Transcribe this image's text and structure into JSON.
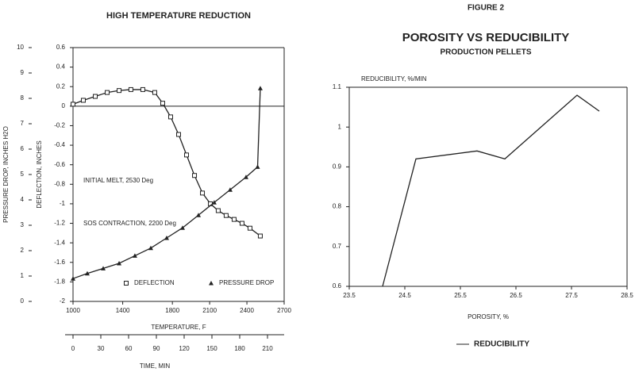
{
  "chart_data": [
    {
      "type": "line",
      "title": "HIGH TEMPERATURE REDUCTION",
      "xlabel": "TEMPERATURE, F",
      "x2label": "TIME, MIN",
      "ylabel": "DEFLECTION, INCHES",
      "y2label": "PRESSURE DROP, INCHES H2O",
      "xlim": [
        1000,
        2700
      ],
      "xticks": [
        1000,
        1400,
        1800,
        2100,
        2400,
        2700
      ],
      "x2lim": [
        0,
        228
      ],
      "x2ticks": [
        0,
        30,
        60,
        90,
        120,
        150,
        180,
        210
      ],
      "ylim": [
        -2,
        0.6
      ],
      "yticks": [
        -2,
        -1.8,
        -1.6,
        -1.4,
        -1.2,
        -1,
        -0.8,
        -0.6,
        -0.4,
        -0.2,
        0,
        0.2,
        0.4,
        0.6
      ],
      "y2lim": [
        0,
        10
      ],
      "y2ticks": [
        0,
        1,
        2,
        3,
        4,
        5,
        6,
        7,
        8,
        9,
        10
      ],
      "annotations": [
        "INITIAL MELT, 2530 Deg",
        "SOS CONTRACTION, 2200 Deg"
      ],
      "legend": "bottom",
      "series": [
        {
          "name": "DEFLECTION",
          "color": "#222222",
          "marker": "square",
          "x": [
            1000,
            1083,
            1179,
            1275,
            1371,
            1466,
            1562,
            1658,
            1722,
            1786,
            1850,
            1914,
            1978,
            2042,
            2106,
            2169,
            2233,
            2297,
            2361,
            2425,
            2508
          ],
          "values": [
            0.02,
            0.06,
            0.1,
            0.14,
            0.16,
            0.17,
            0.17,
            0.14,
            0.03,
            -0.11,
            -0.29,
            -0.5,
            -0.71,
            -0.89,
            -1,
            -1.07,
            -1.12,
            -1.16,
            -1.2,
            -1.25,
            -1.33
          ]
        },
        {
          "name": "PRESSURE DROP",
          "color": "#222222",
          "marker": "triangle",
          "axis": "y2",
          "x": [
            1000,
            1115,
            1243,
            1371,
            1498,
            1626,
            1754,
            1882,
            2010,
            2137,
            2265,
            2393,
            2486,
            2508
          ],
          "values": [
            0.9,
            1.1,
            1.3,
            1.5,
            1.8,
            2.1,
            2.5,
            2.9,
            3.4,
            3.9,
            4.4,
            4.9,
            5.3,
            8.4
          ]
        }
      ]
    },
    {
      "type": "line",
      "figure_label": "FIGURE 2",
      "title": "POROSITY VS REDUCIBILITY",
      "subtitle": "PRODUCTION PELLETS",
      "xlabel": "POROSITY, %",
      "ylabel": "REDUCIBILITY, %/MIN",
      "xlim": [
        23.5,
        28.5
      ],
      "xticks": [
        23.5,
        24.5,
        25.5,
        26.5,
        27.5,
        28.5
      ],
      "ylim": [
        0.6,
        1.1
      ],
      "yticks": [
        0.6,
        0.7,
        0.8,
        0.9,
        1,
        1.1
      ],
      "legend": "bottom",
      "series": [
        {
          "name": "REDUCIBILITY",
          "color": "#222222",
          "marker": "none",
          "x": [
            24.1,
            24.7,
            25.8,
            26.3,
            27.6,
            28.0
          ],
          "values": [
            0.6,
            0.92,
            0.94,
            0.92,
            1.08,
            1.04
          ]
        }
      ]
    }
  ]
}
